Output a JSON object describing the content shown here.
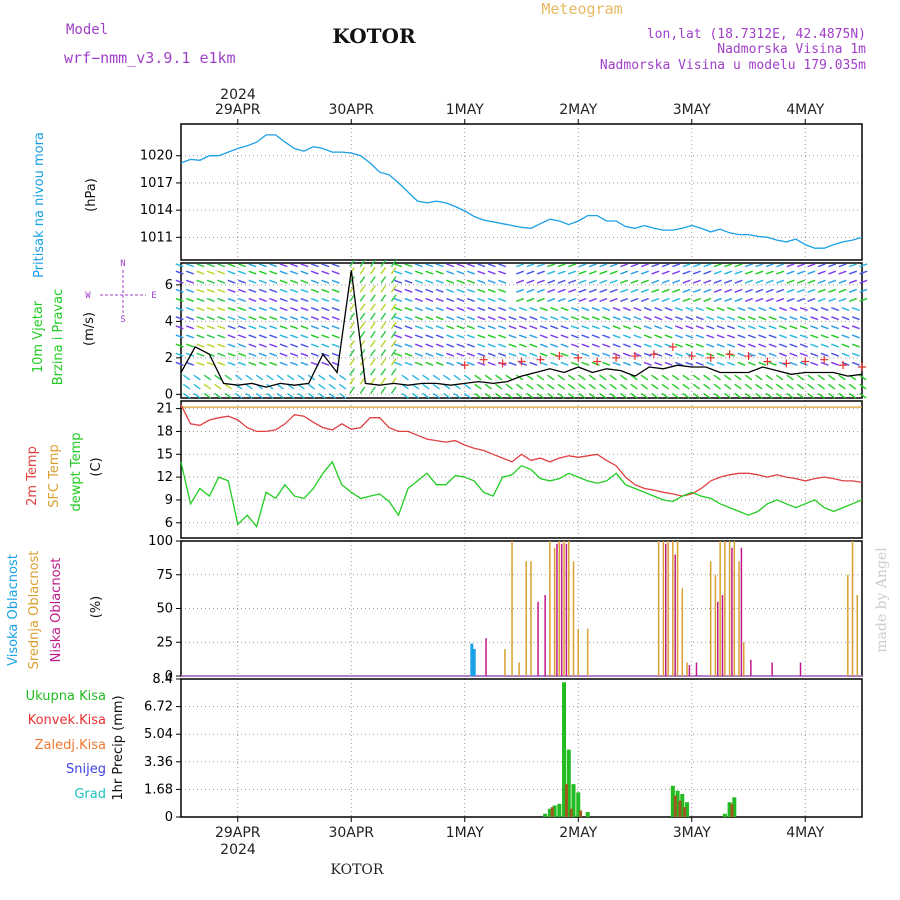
{
  "header": {
    "model_label": "Model",
    "model_name": "wrf−nmm_v3.9.1 e1km",
    "station": "KOTOR",
    "meteogram_label": "Meteogram",
    "lonlat": "lon,lat (18.7312E, 42.4875N)",
    "alt1": "Nadmorska Visina 1m",
    "alt2": "Nadmorska Visina u modelu 179.035m",
    "year_top": "2024",
    "footer_station": "KOTOR",
    "watermark": "made by Angel"
  },
  "colors": {
    "pressure": "#1aa0e6",
    "wind_speed": "#000000",
    "gust": "#e83030",
    "temp2m": "#e04040",
    "sfc_temp": "#d9a030",
    "dewpt": "#22cc22",
    "cloud_high": "#1aa0e6",
    "cloud_mid": "#d9a030",
    "cloud_low": "#c0188a",
    "precip_total": "#22bb22",
    "precip_conv": "#e83030",
    "precip_frz": "#f07830",
    "snow": "#4040e0",
    "grad": "#20c0c0"
  },
  "chart_data": [
    {
      "type": "line",
      "panel": "pressure",
      "ylabel_line1": "Pritisak na nivou mora",
      "ylabel_unit": "(hPa)",
      "yticks": [
        1011,
        1014,
        1017,
        1020
      ],
      "ylim": [
        1008.5,
        1023.5
      ],
      "xlim_hours": [
        0,
        144
      ],
      "x_hours": [
        0,
        2,
        4,
        6,
        8,
        10,
        12,
        14,
        16,
        18,
        20,
        22,
        24,
        26,
        28,
        30,
        32,
        34,
        36,
        38,
        40,
        42,
        44,
        46,
        48,
        50,
        52,
        54,
        56,
        58,
        60,
        62,
        64,
        66,
        68,
        70,
        72,
        74,
        76,
        78,
        80,
        82,
        84,
        86,
        88,
        90,
        92,
        94,
        96,
        98,
        100,
        102,
        104,
        106,
        108,
        110,
        112,
        114,
        116,
        118,
        120,
        122,
        124,
        126,
        128,
        130,
        132,
        134,
        136,
        138,
        140,
        142,
        144
      ],
      "values": [
        1019.2,
        1019.6,
        1019.5,
        1020.0,
        1020.0,
        1020.4,
        1020.8,
        1021.1,
        1021.5,
        1022.3,
        1022.3,
        1021.5,
        1020.8,
        1020.5,
        1021.0,
        1020.8,
        1020.4,
        1020.4,
        1020.3,
        1020.0,
        1019.2,
        1018.2,
        1017.9,
        1017.0,
        1016.0,
        1015.0,
        1014.8,
        1015.0,
        1014.8,
        1014.4,
        1013.9,
        1013.3,
        1012.9,
        1012.7,
        1012.5,
        1012.3,
        1012.1,
        1012.0,
        1012.5,
        1013.0,
        1012.8,
        1012.4,
        1012.8,
        1013.4,
        1013.4,
        1012.8,
        1012.8,
        1012.2,
        1012.0,
        1012.3,
        1012.0,
        1011.8,
        1011.8,
        1012.0,
        1012.3,
        1012.0,
        1011.6,
        1011.9,
        1011.5,
        1011.3,
        1011.3,
        1011.1,
        1011.0,
        1010.7,
        1010.5,
        1010.8,
        1010.2,
        1009.8,
        1009.8,
        1010.2,
        1010.5,
        1010.7,
        1011.0
      ]
    },
    {
      "type": "line",
      "panel": "wind",
      "ylabel_line1": "10m Vjetar",
      "ylabel_line2": "Brzina i Pravac",
      "ylabel_unit": "(m/s)",
      "compass": {
        "n": "N",
        "s": "S",
        "e": "E",
        "w": "W"
      },
      "yticks": [
        0,
        2,
        4,
        6
      ],
      "ylim": [
        -0.2,
        7.2
      ],
      "x_hours": [
        0,
        3,
        6,
        9,
        12,
        15,
        18,
        21,
        24,
        27,
        30,
        33,
        36,
        39,
        42,
        45,
        48,
        51,
        54,
        57,
        60,
        63,
        66,
        69,
        72,
        75,
        78,
        81,
        84,
        87,
        90,
        93,
        96,
        99,
        102,
        105,
        108,
        111,
        114,
        117,
        120,
        123,
        126,
        129,
        132,
        135,
        138,
        141,
        144
      ],
      "speed": [
        1.2,
        2.6,
        2.2,
        0.6,
        0.5,
        0.6,
        0.4,
        0.6,
        0.5,
        0.6,
        2.2,
        1.2,
        6.8,
        0.6,
        0.5,
        0.6,
        0.5,
        0.6,
        0.6,
        0.5,
        0.6,
        0.7,
        0.6,
        0.7,
        1.0,
        1.2,
        1.4,
        1.2,
        1.5,
        1.2,
        1.4,
        1.3,
        1.0,
        1.5,
        1.4,
        1.6,
        1.5,
        1.5,
        1.2,
        1.2,
        1.2,
        1.5,
        1.3,
        1.1,
        1.2,
        1.2,
        1.2,
        1.0,
        1.1
      ],
      "gust_hours": [
        60,
        64,
        68,
        72,
        76,
        80,
        84,
        88,
        92,
        96,
        100,
        104,
        108,
        112,
        116,
        120,
        124,
        128,
        132,
        136,
        140,
        144
      ],
      "gust": [
        1.6,
        1.9,
        1.7,
        1.8,
        1.9,
        2.1,
        2.0,
        1.8,
        2.0,
        2.1,
        2.2,
        2.6,
        2.1,
        2.0,
        2.2,
        2.1,
        1.8,
        1.7,
        1.8,
        1.9,
        1.6,
        1.5
      ]
    },
    {
      "type": "line",
      "panel": "temperature",
      "ylabel_line1": "2m Temp",
      "ylabel_line2": "SFC Temp",
      "ylabel_line3": "dewpt Temp",
      "ylabel_unit": "(C)",
      "yticks": [
        6,
        9,
        12,
        15,
        18,
        21
      ],
      "ylim": [
        4,
        22
      ],
      "x_hours": [
        0,
        2,
        4,
        6,
        8,
        10,
        12,
        14,
        16,
        18,
        20,
        22,
        24,
        26,
        28,
        30,
        32,
        34,
        36,
        38,
        40,
        42,
        44,
        46,
        48,
        50,
        52,
        54,
        56,
        58,
        60,
        62,
        64,
        66,
        68,
        70,
        72,
        74,
        76,
        78,
        80,
        82,
        84,
        86,
        88,
        90,
        92,
        94,
        96,
        98,
        100,
        102,
        104,
        106,
        108,
        110,
        112,
        114,
        116,
        118,
        120,
        122,
        124,
        126,
        128,
        130,
        132,
        134,
        136,
        138,
        140,
        142,
        144
      ],
      "temp2m": [
        21.5,
        19.0,
        18.8,
        19.5,
        19.8,
        20.0,
        19.5,
        18.5,
        18.0,
        18.0,
        18.2,
        19.0,
        20.2,
        20.0,
        19.2,
        18.5,
        18.2,
        19.0,
        18.3,
        18.5,
        19.8,
        19.8,
        18.5,
        18.0,
        18.0,
        17.5,
        17.0,
        16.8,
        16.6,
        16.8,
        16.2,
        15.8,
        15.5,
        15.0,
        14.5,
        14.0,
        15.0,
        14.2,
        14.5,
        14.0,
        14.5,
        14.8,
        14.6,
        14.8,
        15.0,
        14.2,
        13.5,
        12.0,
        11.0,
        10.5,
        10.3,
        10.0,
        9.8,
        9.5,
        9.8,
        10.5,
        11.5,
        12.0,
        12.3,
        12.5,
        12.5,
        12.3,
        12.0,
        12.3,
        12.0,
        11.8,
        11.5,
        11.8,
        12.0,
        11.8,
        11.5,
        11.5,
        11.3
      ],
      "sfc_temp": [
        21.2,
        21.2,
        21.2,
        21.2,
        21.2,
        21.2,
        21.2,
        21.2,
        21.2,
        21.2,
        21.2,
        21.2,
        21.2,
        21.2,
        21.2,
        21.2,
        21.2,
        21.2,
        21.2,
        21.2,
        21.2,
        21.2,
        21.2,
        21.2,
        21.2,
        21.2,
        21.2,
        21.2,
        21.2,
        21.2,
        21.2,
        21.2,
        21.2,
        21.2,
        21.2,
        21.2,
        21.2,
        21.2,
        21.2,
        21.2,
        21.2,
        21.2,
        21.2,
        21.2,
        21.2,
        21.2,
        21.2,
        21.2,
        21.2,
        21.2,
        21.2,
        21.2,
        21.2,
        21.2,
        21.2,
        21.2,
        21.2,
        21.2,
        21.2,
        21.2,
        21.2,
        21.2,
        21.2,
        21.2,
        21.2,
        21.2,
        21.2,
        21.2,
        21.2,
        21.2,
        21.2,
        21.2,
        21.2
      ],
      "dewpt": [
        14.0,
        8.5,
        10.5,
        9.5,
        12.0,
        11.5,
        5.8,
        7.0,
        5.5,
        10.0,
        9.2,
        11.0,
        9.5,
        9.2,
        10.5,
        12.5,
        14.0,
        11.0,
        10.0,
        9.2,
        9.5,
        9.8,
        8.8,
        7.0,
        10.5,
        11.5,
        12.5,
        11.0,
        11.0,
        12.2,
        12.0,
        11.5,
        10.0,
        9.5,
        12.0,
        12.3,
        13.5,
        13.0,
        11.8,
        11.5,
        11.8,
        12.5,
        12.0,
        11.5,
        11.2,
        11.5,
        12.5,
        11.0,
        10.5,
        10.0,
        9.5,
        9.0,
        8.8,
        9.5,
        10.0,
        9.5,
        9.2,
        8.5,
        8.0,
        7.5,
        7.0,
        7.5,
        8.5,
        9.0,
        8.5,
        8.0,
        8.5,
        9.0,
        8.0,
        7.5,
        8.0,
        8.5,
        9.0
      ]
    },
    {
      "type": "bar",
      "panel": "clouds",
      "ylabel_line1": "Visoka Oblacnost",
      "ylabel_line2": "Srednja Oblacnost",
      "ylabel_line3": "Niska Oblacnost",
      "ylabel_unit": "(%)",
      "yticks": [
        0,
        25,
        50,
        75,
        100
      ],
      "ylim": [
        0,
        100
      ],
      "high": [
        {
          "h": 61.5,
          "v": 24
        },
        {
          "h": 62.0,
          "v": 20
        }
      ],
      "mid": [
        {
          "h": 68.5,
          "v": 20
        },
        {
          "h": 70,
          "v": 100
        },
        {
          "h": 71.5,
          "v": 10
        },
        {
          "h": 73,
          "v": 85
        },
        {
          "h": 74,
          "v": 85
        },
        {
          "h": 78,
          "v": 100
        },
        {
          "h": 79,
          "v": 95
        },
        {
          "h": 80,
          "v": 100
        },
        {
          "h": 81,
          "v": 100
        },
        {
          "h": 82,
          "v": 100
        },
        {
          "h": 83,
          "v": 85
        },
        {
          "h": 84,
          "v": 35
        },
        {
          "h": 86,
          "v": 35
        },
        {
          "h": 101,
          "v": 100
        },
        {
          "h": 102,
          "v": 100
        },
        {
          "h": 103,
          "v": 100
        },
        {
          "h": 104,
          "v": 100
        },
        {
          "h": 105,
          "v": 100
        },
        {
          "h": 106,
          "v": 65
        },
        {
          "h": 107,
          "v": 10
        },
        {
          "h": 112,
          "v": 85
        },
        {
          "h": 113,
          "v": 75
        },
        {
          "h": 114,
          "v": 100
        },
        {
          "h": 115,
          "v": 100
        },
        {
          "h": 116,
          "v": 100
        },
        {
          "h": 117,
          "v": 100
        },
        {
          "h": 118,
          "v": 85
        },
        {
          "h": 119,
          "v": 25
        },
        {
          "h": 141,
          "v": 75
        },
        {
          "h": 142,
          "v": 100
        },
        {
          "h": 143,
          "v": 60
        }
      ],
      "low": [
        {
          "h": 64.5,
          "v": 28
        },
        {
          "h": 75.5,
          "v": 55
        },
        {
          "h": 77,
          "v": 60
        },
        {
          "h": 79.5,
          "v": 98
        },
        {
          "h": 80.5,
          "v": 98
        },
        {
          "h": 81.5,
          "v": 98
        },
        {
          "h": 102.5,
          "v": 98
        },
        {
          "h": 104.5,
          "v": 90
        },
        {
          "h": 107.5,
          "v": 8
        },
        {
          "h": 109,
          "v": 10
        },
        {
          "h": 113.5,
          "v": 55
        },
        {
          "h": 114.5,
          "v": 60
        },
        {
          "h": 116.5,
          "v": 95
        },
        {
          "h": 118.5,
          "v": 95
        },
        {
          "h": 120.5,
          "v": 12
        },
        {
          "h": 125,
          "v": 10
        },
        {
          "h": 131,
          "v": 10
        }
      ]
    },
    {
      "type": "bar",
      "panel": "precip",
      "labels": [
        "Ukupna Kisa",
        "Konvek.Kisa",
        "Zaledj.Kisa",
        "Snijeg",
        "Grad"
      ],
      "ylabel_unit": "1hr Precip (mm)",
      "yticks": [
        0,
        1.68,
        3.36,
        5.04,
        6.72,
        8.4
      ],
      "ylim": [
        0,
        8.4
      ],
      "total": [
        {
          "h": 77,
          "v": 0.2
        },
        {
          "h": 78,
          "v": 0.5
        },
        {
          "h": 79,
          "v": 0.7
        },
        {
          "h": 80,
          "v": 0.8
        },
        {
          "h": 81,
          "v": 8.2
        },
        {
          "h": 82,
          "v": 4.1
        },
        {
          "h": 83,
          "v": 2.0
        },
        {
          "h": 84,
          "v": 1.5
        },
        {
          "h": 86,
          "v": 0.3
        },
        {
          "h": 104,
          "v": 1.9
        },
        {
          "h": 105,
          "v": 1.6
        },
        {
          "h": 106,
          "v": 1.4
        },
        {
          "h": 107,
          "v": 0.9
        },
        {
          "h": 115,
          "v": 0.2
        },
        {
          "h": 116,
          "v": 0.9
        },
        {
          "h": 117,
          "v": 1.2
        }
      ],
      "convective": [
        {
          "h": 78.5,
          "v": 0.6
        },
        {
          "h": 81.5,
          "v": 2.0
        },
        {
          "h": 82.5,
          "v": 0.5
        },
        {
          "h": 84.5,
          "v": 0.4
        },
        {
          "h": 104.5,
          "v": 1.3
        },
        {
          "h": 105.5,
          "v": 1.0
        },
        {
          "h": 106.5,
          "v": 0.6
        },
        {
          "h": 116.5,
          "v": 0.8
        }
      ]
    }
  ],
  "x_axis": {
    "day_hours": [
      12,
      36,
      60,
      84,
      108,
      132
    ],
    "top_labels": [
      "29APR",
      "30APR",
      "1MAY",
      "2MAY",
      "3MAY",
      "4MAY"
    ],
    "bottom_labels": [
      "29APR",
      "30APR",
      "1MAY",
      "2MAY",
      "3MAY",
      "4MAY"
    ],
    "year_bottom": "2024"
  }
}
